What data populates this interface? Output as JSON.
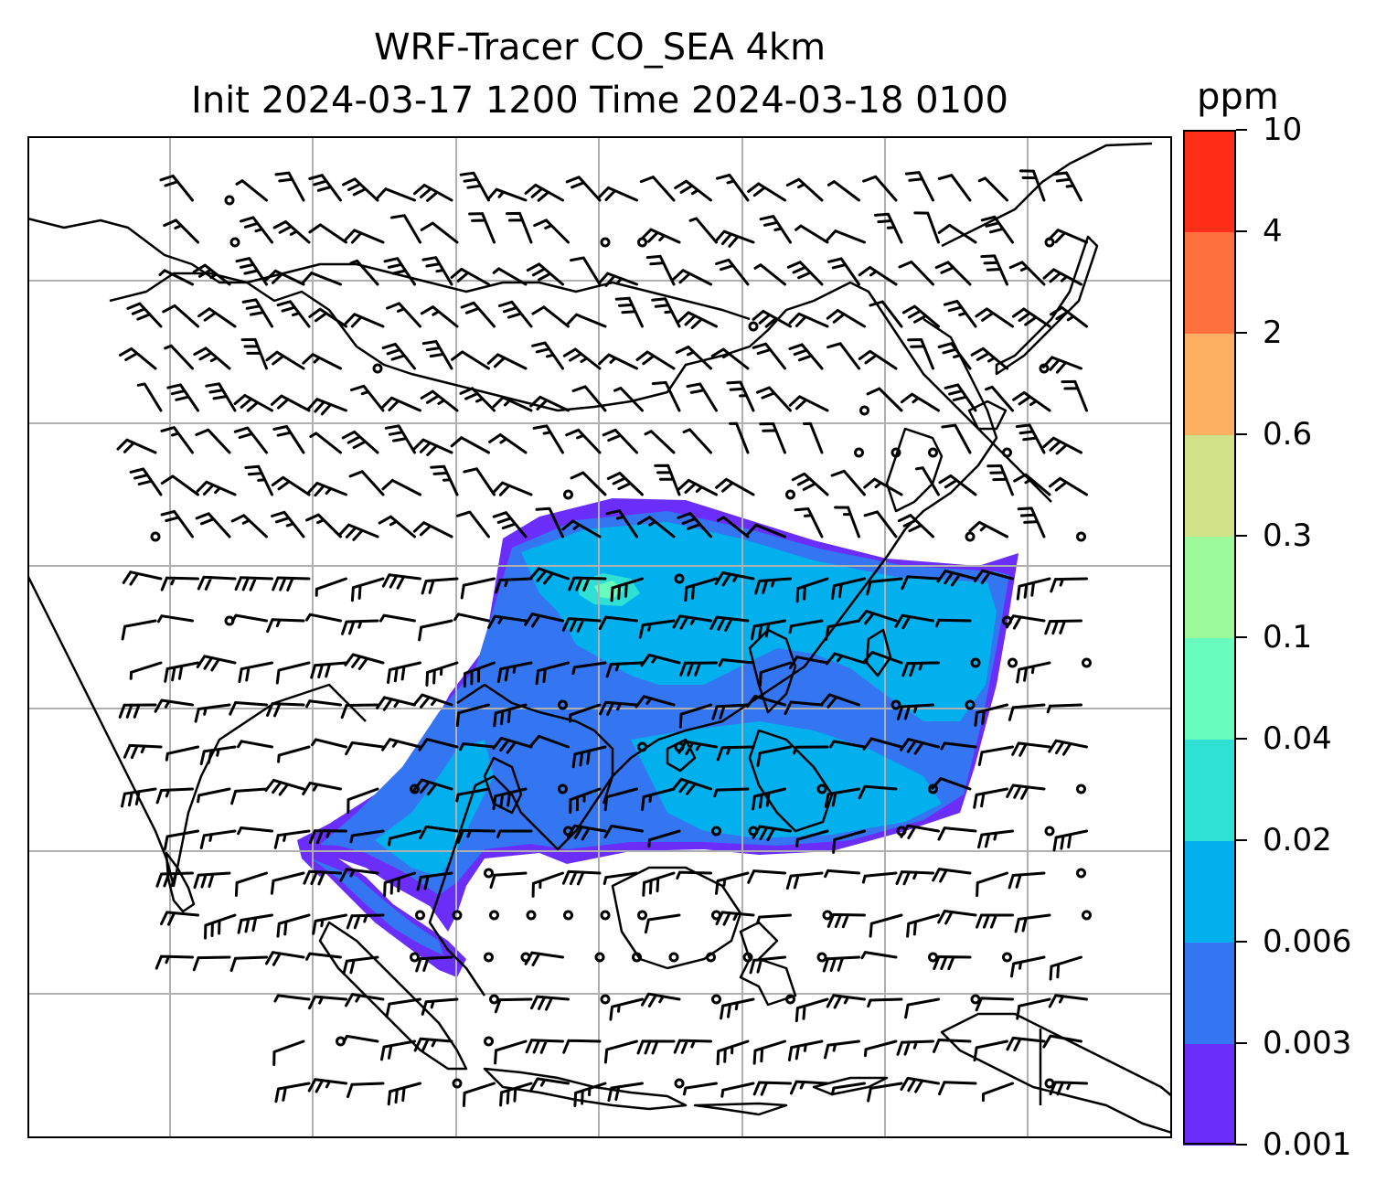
{
  "title": {
    "line1": "WRF-Tracer CO_SEA 4km",
    "line2": "Init 2024-03-17 1200 Time 2024-03-18 0100"
  },
  "colorbar": {
    "units": "ppm",
    "labels": [
      "10",
      "4",
      "2",
      "0.6",
      "0.3",
      "0.1",
      "0.04",
      "0.02",
      "0.006",
      "0.003",
      "0.001"
    ],
    "colors": [
      "#2c28f0",
      "#6b2ef8",
      "#3475f2",
      "#03b0ee",
      "#2fe0d4",
      "#68fcbe",
      "#9bf99a",
      "#d0e188",
      "#fdb062",
      "#fe703d",
      "#fe2e18"
    ],
    "band_colors_low_to_high": [
      "#6b2ef8",
      "#3475f2",
      "#03b0ee",
      "#2fe0d4",
      "#68fcbe",
      "#9bf99a",
      "#d0e188",
      "#fdb062",
      "#fe703d",
      "#fe2e18"
    ]
  },
  "map": {
    "gridlines": true,
    "gridline_color": "#b0b0b0",
    "coastline_color": "#000000",
    "overlay": "wind barbs",
    "field": "CO tracer concentration"
  }
}
